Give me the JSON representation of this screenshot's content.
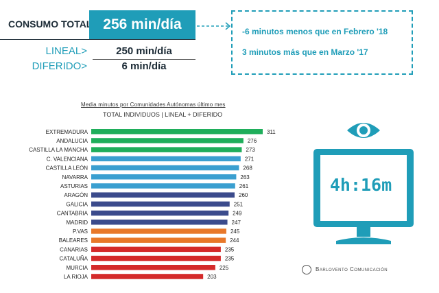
{
  "summary": {
    "label": "CONSUMO TOTAL",
    "total_value": "256 min/día",
    "rows": [
      {
        "label": "LINEAL>",
        "value": "250 min/día"
      },
      {
        "label": "DIFERIDO>",
        "value": "6 min/día"
      }
    ]
  },
  "comparison": {
    "lines": [
      "-6 minutos menos que en Febrero '18",
      "3 minutos más que en Marzo '17"
    ]
  },
  "tv_display": {
    "text": "4h:16m"
  },
  "brand": {
    "name": "Barlovento Comunicación"
  },
  "colors": {
    "accent": "#1f9db8",
    "green": "#1fae5b",
    "blue": "#3a9fd0",
    "navy": "#3b4b8c",
    "orange": "#e8782a",
    "red": "#d42a2a"
  },
  "chart_data": {
    "type": "bar",
    "orientation": "horizontal",
    "title": "Media minutos por Comunidades Autónomas último mes",
    "subtitle": "TOTAL INDIVIDUOS  | LINEAL + DIFERIDO",
    "categories": [
      "EXTREMADURA",
      "ANDALUCIA",
      "CASTILLA LA MANCHA",
      "C. VALENCIANA",
      "CASTILLA LEÓN",
      "NAVARRA",
      "ASTURIAS",
      "ARAGÓN",
      "GALICIA",
      "CANTABRIA",
      "MADRID",
      "P.VAS",
      "BALEARES",
      "CANARIAS",
      "CATALUÑA",
      "MURCIA",
      "LA RIOJA"
    ],
    "values": [
      311,
      276,
      273,
      271,
      268,
      263,
      261,
      260,
      251,
      249,
      247,
      245,
      244,
      235,
      235,
      225,
      203
    ],
    "bar_colors": [
      "#1fae5b",
      "#1fae5b",
      "#1fae5b",
      "#3a9fd0",
      "#3a9fd0",
      "#3a9fd0",
      "#3a9fd0",
      "#3b4b8c",
      "#3b4b8c",
      "#3b4b8c",
      "#3b4b8c",
      "#e8782a",
      "#e8782a",
      "#d42a2a",
      "#d42a2a",
      "#d42a2a",
      "#d42a2a"
    ],
    "xlim": [
      0,
      311
    ]
  }
}
